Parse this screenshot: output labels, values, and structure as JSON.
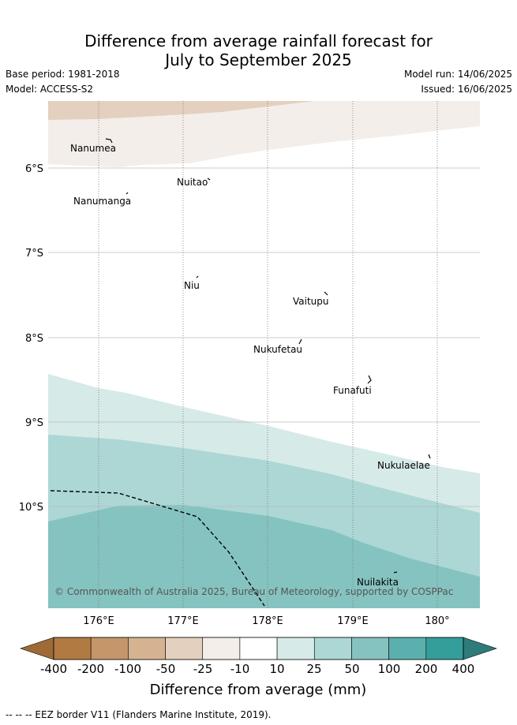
{
  "title_line1": "Difference from average rainfall forecast for",
  "title_line2": "July to September 2025",
  "base_period": "Base period: 1981-2018",
  "model": "Model: ACCESS-S2",
  "model_run": "Model run: 14/06/2025",
  "issued": "Issued: 16/06/2025",
  "lat_labels": [
    "6°S",
    "7°S",
    "8°S",
    "9°S",
    "10°S"
  ],
  "lon_labels": [
    "176°E",
    "177°E",
    "178°E",
    "179°E",
    "180°"
  ],
  "places": [
    "Nanumea",
    "Nuitao",
    "Nanumanga",
    "Niu",
    "Vaitupu",
    "Nukufetau",
    "Funafuti",
    "Nukulaelae",
    "Nuilakita"
  ],
  "copyright": "© Commonwealth of Australia 2025, Bureau of Meteorology, supported by COSPPac",
  "legend": {
    "ticks": [
      "-400",
      "-200",
      "-100",
      "-50",
      "-25",
      "-10",
      "10",
      "25",
      "50",
      "100",
      "200",
      "400"
    ],
    "title": "Difference from average (mm)",
    "colors": [
      "#9e6a35",
      "#b17a42",
      "#c4966a",
      "#d5b391",
      "#e3d0be",
      "#f3eee9",
      "#ffffff",
      "#d6eae8",
      "#acd7d5",
      "#85c3c0",
      "#5bb0ae",
      "#349e9b",
      "#2e7b7a"
    ]
  },
  "eez_legend": "-- -- -- EEZ border V11 (Flanders Marine Institute, 2019)."
}
